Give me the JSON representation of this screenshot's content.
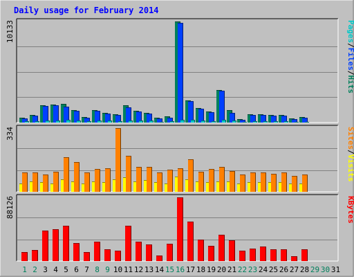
{
  "title": "Daily usage for February 2014",
  "colors": {
    "background": "#c0c0c0",
    "plot": "#c0c0c0",
    "title": "#0000ff",
    "hits": "#00805c",
    "files": "#0040ff",
    "pages": "#00c8c8",
    "visits": "#ffff00",
    "sites": "#ff8000",
    "kbytes": "#ff0000",
    "weekday": "#000000",
    "weekend": "#00805c"
  },
  "chart_data": [
    {
      "type": "bar",
      "panel": "hits-files-pages",
      "categories": [
        "1",
        "2",
        "3",
        "4",
        "5",
        "6",
        "7",
        "8",
        "9",
        "10",
        "11",
        "12",
        "13",
        "14",
        "15",
        "16",
        "17",
        "18",
        "19",
        "20",
        "21",
        "22",
        "23",
        "24",
        "25",
        "26",
        "27",
        "28",
        "29",
        "30",
        "31"
      ],
      "weekend_days": [
        "1",
        "2",
        "8",
        "9",
        "15",
        "16",
        "22",
        "23",
        "29",
        "30"
      ],
      "y_tick_label": "10133",
      "ylim": [
        0,
        10133
      ],
      "legend": [
        {
          "text": "Hits",
          "color_key": "hits"
        },
        {
          "text": "/",
          "color_key": "weekday"
        },
        {
          "text": "Files",
          "color_key": "files"
        },
        {
          "text": "/",
          "color_key": "weekday"
        },
        {
          "text": "Pages",
          "color_key": "pages"
        }
      ],
      "series": [
        {
          "name": "Hits",
          "color_key": "hits",
          "values": [
            480,
            760,
            1720,
            1800,
            1880,
            1280,
            560,
            1280,
            1000,
            840,
            1760,
            1160,
            1000,
            520,
            600,
            10133,
            2240,
            1480,
            1120,
            3280,
            1240,
            360,
            840,
            840,
            760,
            760,
            400,
            540,
            0,
            0,
            0
          ]
        },
        {
          "name": "Files",
          "color_key": "files",
          "values": [
            400,
            680,
            1640,
            1720,
            1600,
            1200,
            480,
            1200,
            920,
            760,
            1560,
            1080,
            920,
            440,
            520,
            10000,
            2160,
            1400,
            1040,
            3200,
            960,
            280,
            760,
            760,
            680,
            680,
            320,
            460,
            0,
            0,
            0
          ]
        },
        {
          "name": "Pages",
          "color_key": "pages",
          "values": [
            120,
            160,
            220,
            240,
            300,
            220,
            120,
            200,
            180,
            160,
            240,
            200,
            180,
            100,
            140,
            300,
            260,
            200,
            160,
            300,
            180,
            80,
            140,
            140,
            120,
            120,
            80,
            100,
            0,
            0,
            0
          ]
        }
      ]
    },
    {
      "type": "bar",
      "panel": "visits-sites",
      "categories": [
        "1",
        "2",
        "3",
        "4",
        "5",
        "6",
        "7",
        "8",
        "9",
        "10",
        "11",
        "12",
        "13",
        "14",
        "15",
        "16",
        "17",
        "18",
        "19",
        "20",
        "21",
        "22",
        "23",
        "24",
        "25",
        "26",
        "27",
        "28",
        "29",
        "30",
        "31"
      ],
      "y_tick_label": "334",
      "ylim": [
        0,
        334
      ],
      "legend": [
        {
          "text": "Visits",
          "color_key": "visits"
        },
        {
          "text": "/",
          "color_key": "weekday"
        },
        {
          "text": "Sites",
          "color_key": "sites"
        }
      ],
      "series": [
        {
          "name": "Visits",
          "color_key": "visits",
          "values": [
            45,
            55,
            50,
            45,
            65,
            55,
            45,
            55,
            50,
            65,
            75,
            55,
            60,
            50,
            45,
            80,
            65,
            55,
            50,
            55,
            55,
            45,
            50,
            50,
            50,
            50,
            45,
            45,
            0,
            0,
            0
          ]
        },
        {
          "name": "Sites",
          "color_key": "sites",
          "values": [
            100,
            100,
            90,
            105,
            180,
            155,
            100,
            120,
            125,
            334,
            190,
            130,
            130,
            100,
            115,
            125,
            170,
            105,
            120,
            130,
            110,
            90,
            100,
            100,
            95,
            100,
            85,
            90,
            0,
            0,
            0
          ]
        }
      ]
    },
    {
      "type": "bar",
      "panel": "kbytes",
      "categories": [
        "1",
        "2",
        "3",
        "4",
        "5",
        "6",
        "7",
        "8",
        "9",
        "10",
        "11",
        "12",
        "13",
        "14",
        "15",
        "16",
        "17",
        "18",
        "19",
        "20",
        "21",
        "22",
        "23",
        "24",
        "25",
        "26",
        "27",
        "28",
        "29",
        "30",
        "31"
      ],
      "y_tick_label": "88126",
      "ylim": [
        0,
        88126
      ],
      "legend": [
        {
          "text": "KBytes",
          "color_key": "kbytes"
        }
      ],
      "series": [
        {
          "name": "KBytes",
          "color_key": "kbytes",
          "values": [
            12000,
            15000,
            42000,
            44000,
            49000,
            25000,
            12500,
            27000,
            16500,
            14000,
            49000,
            27000,
            23000,
            7500,
            24000,
            88126,
            55000,
            30000,
            21000,
            36000,
            29000,
            14000,
            17000,
            20000,
            16500,
            16500,
            7000,
            16000,
            0,
            0,
            0
          ]
        }
      ]
    }
  ]
}
